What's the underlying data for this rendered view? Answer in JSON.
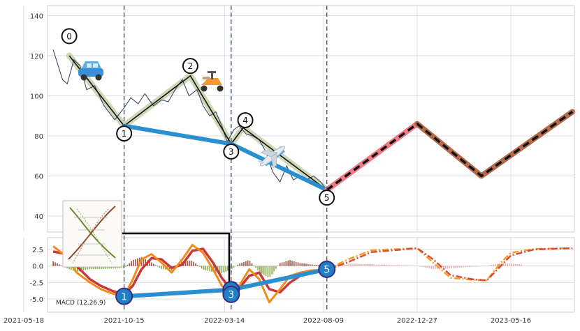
{
  "colors": {
    "background": "#ffffff",
    "grid": "#dcdcdc",
    "price": "#3c4a63",
    "wave_fill": "#c9d3ae",
    "wave_line": "#111111",
    "trend": "#2a8fcf",
    "forecast_pink": "#ef7b86",
    "forecast_brown": "#b66a4c",
    "forecast_dash": "#111111",
    "vline": "#4f6278",
    "macd_orange": "#f28a1e",
    "macd_red": "#c83a3a",
    "macd_forecast_orange": "#f1a026",
    "macd_forecast_red": "#d94a3a",
    "hist_green": "#6f9a2a",
    "hist_brown": "#8a3a25",
    "hist_pink": "#e3a3a3",
    "marker_fill": "#1f7fc4",
    "marker_edge": "#3b2b84"
  },
  "icons": {
    "car": "car-icon",
    "scooter": "scooter-icon",
    "airplane": "airplane-icon",
    "inset": "dna-helix-image"
  },
  "chart_data": [
    {
      "type": "line",
      "panel": "price",
      "ylim": [
        32,
        145
      ],
      "yticks": [
        40,
        60,
        80,
        100,
        120,
        140
      ],
      "xticks": [
        "2021-05-18",
        "2021-10-15",
        "2022-03-14",
        "2022-08-09",
        "2022-12-27",
        "2023-05-16"
      ],
      "grid": true,
      "series": [
        {
          "role": "price",
          "x": [
            "2021-07-01",
            "2021-07-15",
            "2021-07-22",
            "2021-08-01",
            "2021-08-10",
            "2021-08-20",
            "2021-09-01",
            "2021-09-15",
            "2021-10-01",
            "2021-10-15",
            "2021-10-25",
            "2021-11-05",
            "2021-11-15",
            "2021-11-28",
            "2021-12-10",
            "2021-12-20",
            "2022-01-01",
            "2022-01-10",
            "2022-01-20",
            "2022-02-01",
            "2022-02-10",
            "2022-02-20",
            "2022-03-01",
            "2022-03-10",
            "2022-03-18",
            "2022-03-28",
            "2022-04-05",
            "2022-04-15",
            "2022-04-25",
            "2022-05-05",
            "2022-05-15",
            "2022-05-25",
            "2022-06-05",
            "2022-06-15",
            "2022-06-25",
            "2022-07-05",
            "2022-07-15",
            "2022-07-25",
            "2022-08-05",
            "2022-08-14"
          ],
          "y": [
            123,
            108,
            106,
            118,
            115,
            103,
            105,
            95,
            88,
            94,
            99,
            96,
            101,
            95,
            98,
            97,
            104,
            108,
            100,
            103,
            95,
            90,
            92,
            85,
            77,
            83,
            85,
            81,
            80,
            78,
            72,
            62,
            57,
            65,
            58,
            60,
            58,
            60,
            57,
            53
          ]
        }
      ],
      "waves": {
        "labels": [
          "0",
          "1",
          "2",
          "3",
          "4",
          "5"
        ],
        "x": [
          "2021-07-25",
          "2021-10-15",
          "2022-01-22",
          "2022-03-24",
          "2022-04-11",
          "2022-08-14"
        ],
        "y": [
          120,
          85,
          110,
          76,
          84,
          53
        ]
      },
      "trend_line": {
        "x": [
          "2021-10-15",
          "2022-03-24",
          "2022-08-14"
        ],
        "y": [
          85,
          76,
          53
        ]
      },
      "forecast": {
        "x": [
          "2022-08-14",
          "2022-12-27",
          "2023-04-02",
          "2023-08-16"
        ],
        "y": [
          53,
          86,
          60,
          92
        ]
      },
      "vlines": [
        "2021-10-15",
        "2022-03-24",
        "2022-08-14"
      ]
    },
    {
      "type": "line",
      "panel": "macd",
      "title": "MACD (12,26,9)",
      "ylim": [
        -7.0,
        4.3
      ],
      "yticks": [
        -5.0,
        -2.5,
        0.0,
        2.5
      ],
      "grid": true,
      "series": [
        {
          "role": "macd",
          "x": [
            "2021-07-01",
            "2021-07-20",
            "2021-08-05",
            "2021-08-25",
            "2021-09-10",
            "2021-09-28",
            "2021-10-15",
            "2021-10-28",
            "2021-11-10",
            "2021-11-25",
            "2021-12-10",
            "2021-12-25",
            "2022-01-10",
            "2022-01-25",
            "2022-02-10",
            "2022-02-25",
            "2022-03-10",
            "2022-03-24",
            "2022-04-05",
            "2022-04-20",
            "2022-05-05",
            "2022-05-20",
            "2022-06-05",
            "2022-06-20",
            "2022-07-05",
            "2022-07-20",
            "2022-08-05",
            "2022-08-14"
          ],
          "y": [
            3.0,
            1.5,
            -1.0,
            -2.5,
            -3.5,
            -4.2,
            -4.6,
            -2.0,
            1.0,
            1.8,
            0.5,
            -1.0,
            1.0,
            3.2,
            2.0,
            -0.5,
            -3.0,
            -4.2,
            -3.0,
            -0.5,
            -2.0,
            -5.5,
            -3.5,
            -1.5,
            -1.0,
            -0.7,
            -0.6,
            -0.5
          ]
        },
        {
          "role": "signal",
          "x": [
            "2021-07-01",
            "2021-07-20",
            "2021-08-05",
            "2021-08-25",
            "2021-09-10",
            "2021-09-28",
            "2021-10-15",
            "2021-10-28",
            "2021-11-10",
            "2021-11-25",
            "2021-12-10",
            "2021-12-25",
            "2022-01-10",
            "2022-01-25",
            "2022-02-10",
            "2022-02-25",
            "2022-03-10",
            "2022-03-24",
            "2022-04-05",
            "2022-04-20",
            "2022-05-05",
            "2022-05-20",
            "2022-06-05",
            "2022-06-20",
            "2022-07-05",
            "2022-07-20",
            "2022-08-05",
            "2022-08-14"
          ],
          "y": [
            2.2,
            1.8,
            0.0,
            -2.0,
            -3.0,
            -3.8,
            -4.3,
            -3.0,
            -0.5,
            1.2,
            1.0,
            -0.3,
            0.2,
            2.3,
            2.6,
            0.5,
            -1.8,
            -3.6,
            -3.4,
            -1.5,
            -1.0,
            -3.5,
            -4.0,
            -2.5,
            -1.5,
            -1.0,
            -0.7,
            -0.6
          ]
        },
        {
          "role": "macd_forecast",
          "x": [
            "2022-08-14",
            "2022-09-15",
            "2022-10-20",
            "2022-12-27",
            "2023-01-20",
            "2023-02-15",
            "2023-03-20",
            "2023-04-10",
            "2023-05-01",
            "2023-05-16",
            "2023-06-20",
            "2023-08-16"
          ],
          "y": [
            -0.5,
            1.0,
            2.4,
            2.7,
            0.5,
            -1.8,
            -2.1,
            -2.2,
            0.5,
            2.0,
            2.6,
            2.7
          ]
        },
        {
          "role": "signal_forecast",
          "x": [
            "2022-08-14",
            "2022-09-15",
            "2022-10-20",
            "2022-12-27",
            "2023-01-20",
            "2023-02-15",
            "2023-03-20",
            "2023-04-10",
            "2023-05-01",
            "2023-05-16",
            "2023-06-20",
            "2023-08-16"
          ],
          "y": [
            -0.6,
            0.6,
            2.1,
            2.7,
            1.0,
            -1.4,
            -2.0,
            -2.2,
            0.0,
            1.6,
            2.5,
            2.7
          ]
        }
      ],
      "points": {
        "labels": [
          "1",
          "3",
          "3",
          "5"
        ],
        "x": [
          "2021-10-15",
          "2022-03-24",
          "2022-03-24",
          "2022-08-14"
        ],
        "y": [
          -4.6,
          -3.6,
          -4.3,
          -0.5
        ]
      },
      "trend_line": {
        "x": [
          "2021-10-15",
          "2022-03-24",
          "2022-08-14"
        ],
        "y": [
          -4.6,
          -3.6,
          -0.5
        ]
      }
    }
  ]
}
